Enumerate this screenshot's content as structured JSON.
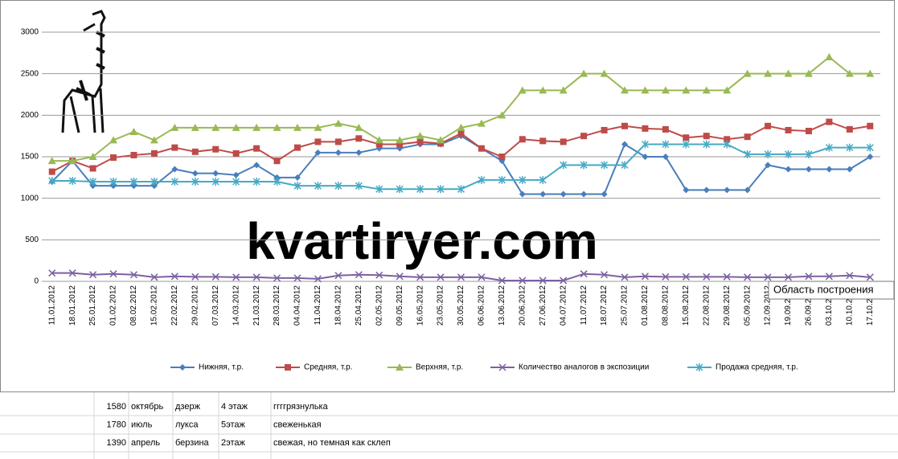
{
  "chart_data": {
    "type": "line",
    "categories": [
      "11.01.2012",
      "18.01.2012",
      "25.01.2012",
      "01.02.2012",
      "08.02.2012",
      "15.02.2012",
      "22.02.2012",
      "29.02.2012",
      "07.03.2012",
      "14.03.2012",
      "21.03.2012",
      "28.03.2012",
      "04.04.2012",
      "11.04.2012",
      "18.04.2012",
      "25.04.2012",
      "02.05.2012",
      "09.05.2012",
      "16.05.2012",
      "23.05.2012",
      "30.05.2012",
      "06.06.2012",
      "13.06.2012",
      "20.06.2012",
      "27.06.2012",
      "04.07.2012",
      "11.07.2012",
      "18.07.2012",
      "25.07.2012",
      "01.08.2012",
      "08.08.2012",
      "15.08.2012",
      "22.08.2012",
      "29.08.2012",
      "05.09.2012",
      "12.09.2012",
      "19.09.2012",
      "26.09.2012",
      "03.10.2012",
      "10.10.2012",
      "17.10.2012"
    ],
    "series": [
      {
        "name": "Нижняя, т.р.",
        "color": "#4a7ebb",
        "marker": "diamond",
        "values": [
          1200,
          1450,
          1150,
          1150,
          1150,
          1150,
          1350,
          1300,
          1300,
          1280,
          1400,
          1250,
          1250,
          1550,
          1550,
          1550,
          1600,
          1600,
          1650,
          1650,
          1750,
          1600,
          1450,
          1050,
          1050,
          1050,
          1050,
          1050,
          1650,
          1500,
          1500,
          1100,
          1100,
          1100,
          1100,
          1400,
          1350,
          1350,
          1350,
          1350,
          1500
        ]
      },
      {
        "name": "Средняя, т.р.",
        "color": "#be4b48",
        "marker": "square",
        "values": [
          1320,
          1450,
          1360,
          1490,
          1520,
          1540,
          1610,
          1560,
          1590,
          1540,
          1600,
          1450,
          1610,
          1680,
          1680,
          1720,
          1650,
          1650,
          1680,
          1660,
          1780,
          1600,
          1500,
          1710,
          1690,
          1680,
          1750,
          1820,
          1870,
          1840,
          1830,
          1730,
          1750,
          1710,
          1740,
          1870,
          1820,
          1810,
          1920,
          1830,
          1870
        ]
      },
      {
        "name": "Верхняя, т.р.",
        "color": "#98b954",
        "marker": "triangle",
        "values": [
          1450,
          1450,
          1500,
          1700,
          1800,
          1700,
          1850,
          1850,
          1850,
          1850,
          1850,
          1850,
          1850,
          1850,
          1900,
          1850,
          1700,
          1700,
          1750,
          1700,
          1850,
          1900,
          2000,
          2300,
          2300,
          2300,
          2500,
          2500,
          2300,
          2300,
          2300,
          2300,
          2300,
          2300,
          2500,
          2500,
          2500,
          2500,
          2700,
          2500,
          2500
        ]
      },
      {
        "name": "Количество аналогов в экспозиции",
        "color": "#7d60a0",
        "marker": "x",
        "values": [
          100,
          100,
          80,
          90,
          80,
          50,
          60,
          55,
          55,
          50,
          50,
          40,
          40,
          30,
          70,
          80,
          75,
          60,
          50,
          50,
          50,
          50,
          10,
          10,
          10,
          10,
          90,
          80,
          50,
          60,
          55,
          55,
          55,
          55,
          50,
          50,
          50,
          60,
          60,
          70,
          50
        ]
      },
      {
        "name": "Продажа средняя, т.р.",
        "color": "#46aac5",
        "marker": "star",
        "values": [
          1210,
          1210,
          1200,
          1200,
          1200,
          1200,
          1200,
          1200,
          1200,
          1200,
          1200,
          1200,
          1150,
          1150,
          1150,
          1150,
          1110,
          1110,
          1110,
          1110,
          1110,
          1220,
          1220,
          1220,
          1220,
          1400,
          1400,
          1400,
          1400,
          1650,
          1650,
          1650,
          1650,
          1650,
          1530,
          1530,
          1530,
          1530,
          1610,
          1610,
          1610
        ]
      }
    ],
    "ylim": [
      0,
      3000
    ],
    "yticks": [
      0,
      500,
      1000,
      1500,
      2000,
      2500,
      3000
    ],
    "grid": true,
    "legend": "bottom",
    "watermark": "kvartiryer.com",
    "tooltip": "Область построения"
  },
  "sheet": {
    "rows": [
      [
        "1580",
        "октябрь",
        "дзерж",
        "4 этаж",
        "ггггрязнулька"
      ],
      [
        "1780",
        "июль",
        "лукса",
        "5этаж",
        "свеженькая"
      ],
      [
        "1390",
        "апрель",
        "берзина",
        "2этаж",
        "свежая, но темная как склеп"
      ]
    ]
  }
}
